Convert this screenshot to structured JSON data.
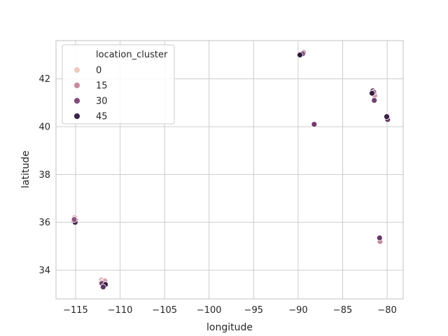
{
  "chart_data": {
    "type": "scatter",
    "xlabel": "longitude",
    "ylabel": "latitude",
    "xlim": [
      -117.2,
      -78.2
    ],
    "ylim": [
      32.8,
      43.6
    ],
    "xticks": [
      -115,
      -110,
      -105,
      -100,
      -95,
      -90,
      -85,
      -80
    ],
    "yticks": [
      34,
      36,
      38,
      40,
      42
    ],
    "grid": true,
    "legend": {
      "title": "location_cluster",
      "placement": "top-left",
      "entries": [
        {
          "label": "0",
          "value": 0
        },
        {
          "label": "15",
          "value": 15
        },
        {
          "label": "30",
          "value": 30
        },
        {
          "label": "45",
          "value": 45
        }
      ]
    },
    "hue_range": [
      0,
      50
    ],
    "points": [
      {
        "x": -115.1,
        "y": 36.2,
        "c": 5
      },
      {
        "x": -115.0,
        "y": 36.1,
        "c": 12
      },
      {
        "x": -115.2,
        "y": 36.05,
        "c": 20
      },
      {
        "x": -115.05,
        "y": 36.0,
        "c": 42
      },
      {
        "x": -115.15,
        "y": 36.12,
        "c": 28
      },
      {
        "x": -112.1,
        "y": 33.6,
        "c": 3
      },
      {
        "x": -111.9,
        "y": 33.5,
        "c": 8
      },
      {
        "x": -112.0,
        "y": 33.4,
        "c": 14
      },
      {
        "x": -111.7,
        "y": 33.55,
        "c": 10
      },
      {
        "x": -111.8,
        "y": 33.35,
        "c": 25
      },
      {
        "x": -112.05,
        "y": 33.45,
        "c": 33
      },
      {
        "x": -111.65,
        "y": 33.4,
        "c": 48
      },
      {
        "x": -111.9,
        "y": 33.3,
        "c": 38
      },
      {
        "x": -89.4,
        "y": 43.1,
        "c": 18
      },
      {
        "x": -89.5,
        "y": 43.05,
        "c": 30
      },
      {
        "x": -89.8,
        "y": 43.0,
        "c": 49
      },
      {
        "x": -88.2,
        "y": 40.1,
        "c": 34
      },
      {
        "x": -81.6,
        "y": 41.5,
        "c": 46
      },
      {
        "x": -81.4,
        "y": 41.3,
        "c": 12
      },
      {
        "x": -81.5,
        "y": 41.45,
        "c": 22
      },
      {
        "x": -81.45,
        "y": 41.1,
        "c": 33
      },
      {
        "x": -81.7,
        "y": 41.4,
        "c": 47
      },
      {
        "x": -80.0,
        "y": 40.45,
        "c": 8
      },
      {
        "x": -80.1,
        "y": 40.4,
        "c": 20
      },
      {
        "x": -79.95,
        "y": 40.3,
        "c": 35
      },
      {
        "x": -80.05,
        "y": 40.42,
        "c": 46
      },
      {
        "x": -80.8,
        "y": 35.2,
        "c": 16
      },
      {
        "x": -80.85,
        "y": 35.35,
        "c": 36
      }
    ]
  }
}
